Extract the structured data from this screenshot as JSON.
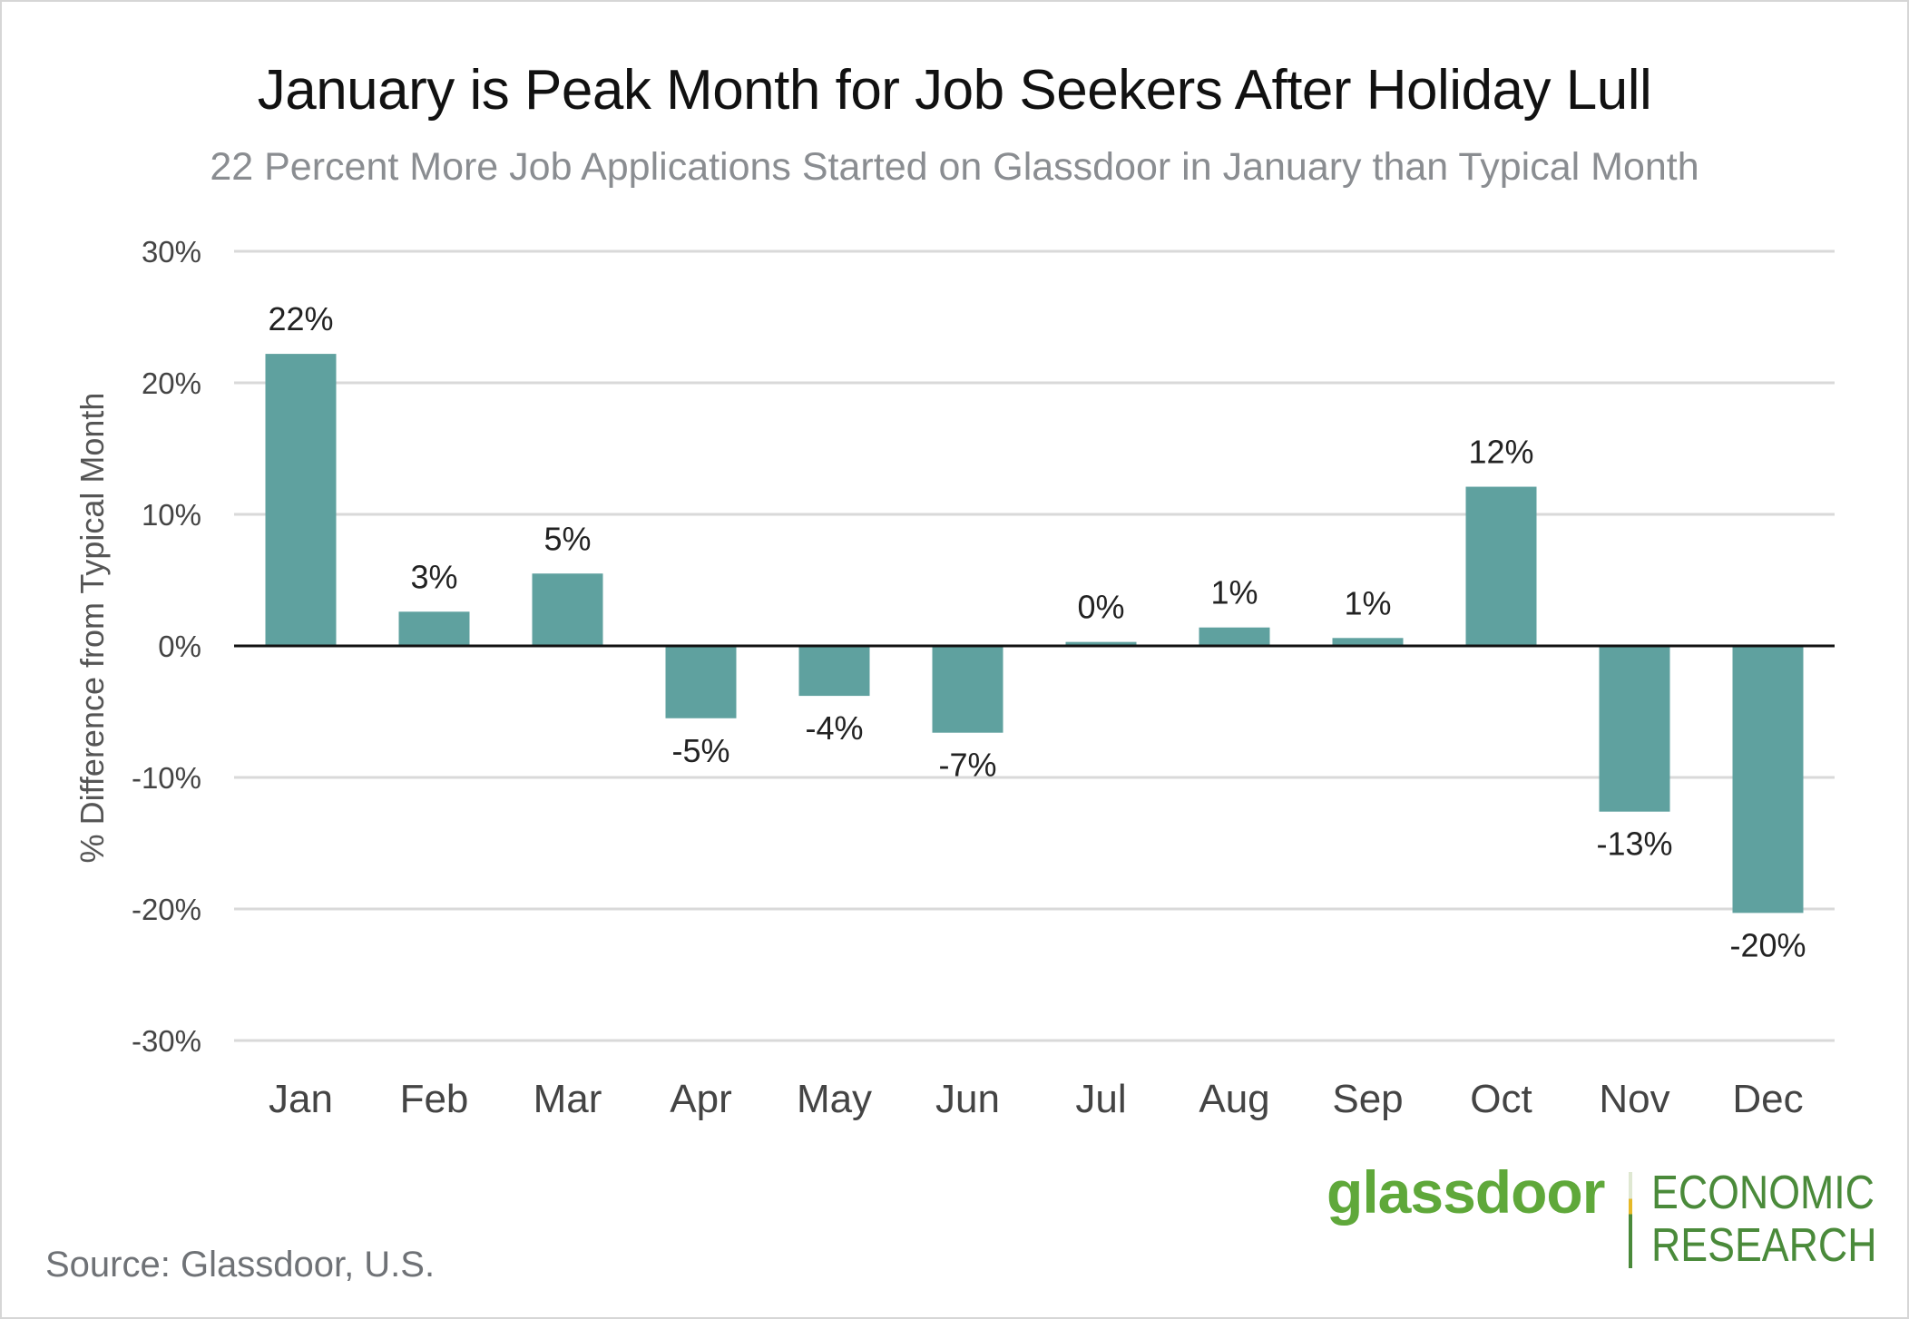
{
  "chart_data": {
    "type": "bar",
    "title": "January is Peak Month for Job Seekers  After Holiday Lull",
    "subtitle": "22 Percent More  Job Applications Started on Glassdoor in January than Typical Month",
    "ylabel": "% Difference from Typical Month",
    "xlabel": "",
    "ylim": [
      -30,
      30
    ],
    "yticks": [
      30,
      20,
      10,
      0,
      -10,
      -20,
      -30
    ],
    "ytick_labels": [
      "30%",
      "20%",
      "10%",
      "0%",
      "-10%",
      "-20%",
      "-30%"
    ],
    "categories": [
      "Jan",
      "Feb",
      "Mar",
      "Apr",
      "May",
      "Jun",
      "Jul",
      "Aug",
      "Sep",
      "Oct",
      "Nov",
      "Dec"
    ],
    "values": [
      22.2,
      2.6,
      5.5,
      -5.5,
      -3.8,
      -6.6,
      0.3,
      1.4,
      0.6,
      12.1,
      -12.6,
      -20.3
    ],
    "data_labels": [
      "22%",
      "3%",
      "5%",
      "-5%",
      "-4%",
      "-7%",
      "0%",
      "1%",
      "1%",
      "12%",
      "-13%",
      "-20%"
    ],
    "bar_color": "#5fa19f",
    "grid": true,
    "legend": "none"
  },
  "source": "Source: Glassdoor, U.S.",
  "logo": {
    "word": "glassdoor",
    "line1": "ECONOMIC",
    "line2": "RESEARCH",
    "word_color": "#5fa83a",
    "sub_color": "#4a8a3a"
  }
}
